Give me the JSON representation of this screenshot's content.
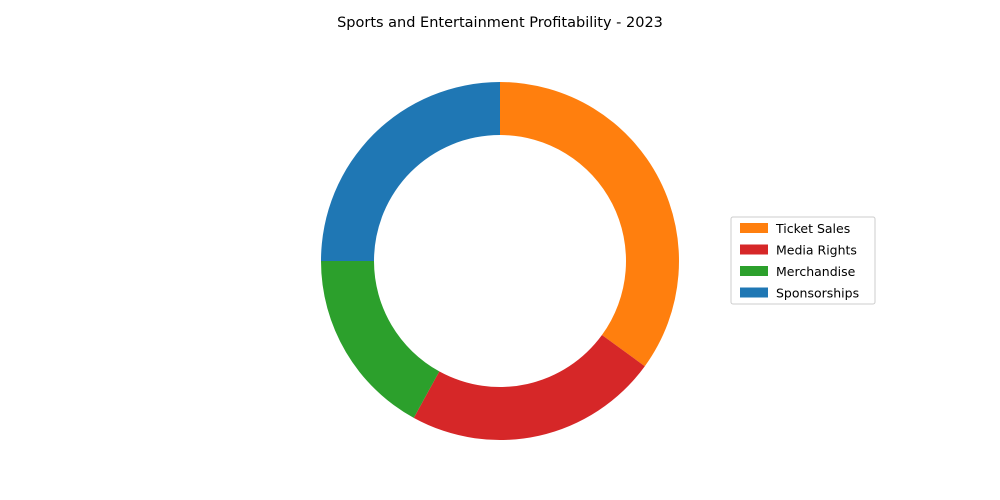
{
  "chart_data": {
    "type": "pie",
    "variant": "donut",
    "title": "Sports and Entertainment Profitability - 2023",
    "slices": [
      {
        "label": "Ticket Sales",
        "value": 35,
        "color": "#ff7f0e"
      },
      {
        "label": "Media Rights",
        "value": 23,
        "color": "#d62728"
      },
      {
        "label": "Merchandise",
        "value": 17,
        "color": "#2ca02c"
      },
      {
        "label": "Sponsorships",
        "value": 25,
        "color": "#1f77b4"
      }
    ],
    "start_angle_deg": 90,
    "direction": "clockwise",
    "legend": {
      "position": "right"
    }
  }
}
